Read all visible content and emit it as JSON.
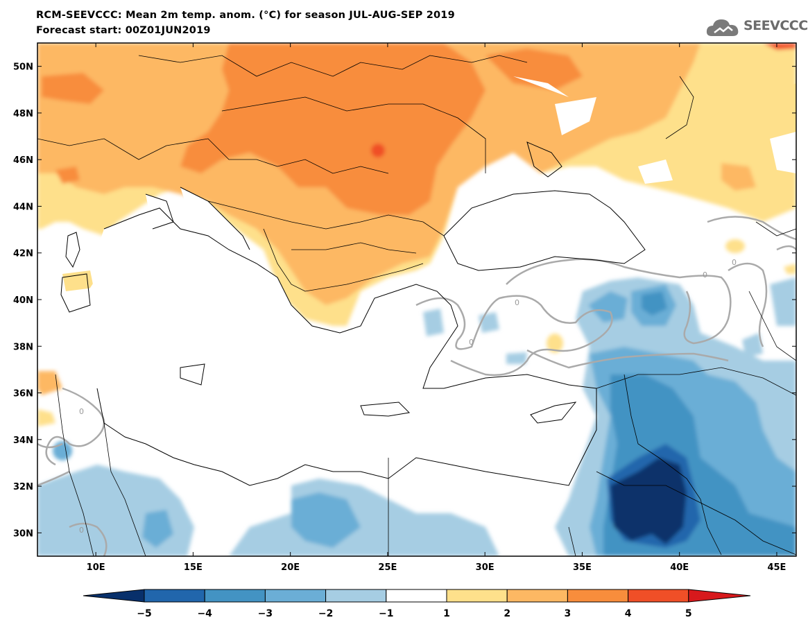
{
  "header": {
    "title": "RCM-SEEVCCC: Mean 2m temp. anom. (°C) for season JUL-AUG-SEP 2019",
    "subtitle": "Forecast start: 00Z01JUN2019"
  },
  "logo": {
    "text": "SEEVCCC",
    "icon": "cloud-icon"
  },
  "map": {
    "lon_range": [
      7,
      46
    ],
    "lat_range": [
      29,
      51
    ],
    "lat_ticks": [
      "50N",
      "48N",
      "46N",
      "44N",
      "42N",
      "40N",
      "38N",
      "36N",
      "34N",
      "32N",
      "30N"
    ],
    "lon_ticks": [
      "10E",
      "15E",
      "20E",
      "25E",
      "30E",
      "35E",
      "40E",
      "45E"
    ],
    "contour_label": "0"
  },
  "colorbar": {
    "levels": [
      "-5",
      "-4",
      "-3",
      "-2",
      "-1",
      "1",
      "2",
      "3",
      "4",
      "5"
    ],
    "colors": [
      "#08306b",
      "#2166ac",
      "#4393c3",
      "#6baed6",
      "#a6cde3",
      "#ffffff",
      "#fee08b",
      "#fdb863",
      "#f88d3c",
      "#f04f27",
      "#d7191c"
    ]
  }
}
